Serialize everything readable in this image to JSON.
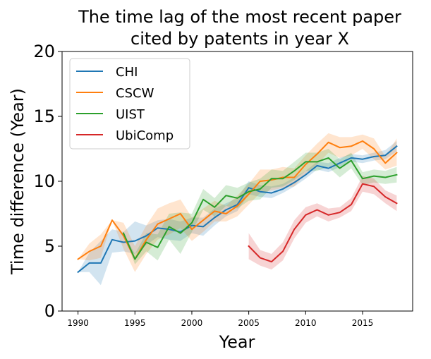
{
  "chart_data": {
    "type": "line",
    "title": [
      "The time lag of the most recent paper",
      "cited by patents in year X"
    ],
    "xlabel": "Year",
    "ylabel": "Time difference (Year)",
    "xlim": [
      1988.6,
      2019.4
    ],
    "ylim": [
      0,
      20
    ],
    "xticks": [
      1990,
      1995,
      2000,
      2005,
      2010,
      2015
    ],
    "xtick_labels": [
      "1990",
      "1995",
      "2000",
      "2005",
      "2010",
      "2015"
    ],
    "yticks": [
      0,
      5,
      10,
      15,
      20
    ],
    "ytick_labels": [
      "0",
      "5",
      "10",
      "15",
      "20"
    ],
    "grid": false,
    "legend_position": "top-left",
    "series": [
      {
        "name": "CHI",
        "color": "#1f77b4",
        "x": [
          1990,
          1991,
          1992,
          1993,
          1994,
          1995,
          1996,
          1997,
          1998,
          1999,
          2000,
          2001,
          2002,
          2003,
          2004,
          2005,
          2006,
          2007,
          2008,
          2009,
          2010,
          2011,
          2012,
          2013,
          2014,
          2015,
          2016,
          2017,
          2018
        ],
        "values": [
          3.0,
          3.7,
          3.7,
          5.5,
          5.3,
          5.4,
          5.8,
          6.4,
          6.3,
          6.1,
          6.6,
          6.5,
          7.2,
          7.8,
          8.2,
          9.5,
          9.2,
          9.1,
          9.4,
          9.9,
          10.5,
          11.2,
          11.0,
          11.4,
          11.8,
          11.7,
          11.9,
          12.0,
          12.7
        ],
        "ci_low": [
          3.0,
          3.0,
          2.0,
          4.5,
          4.6,
          4.4,
          5.1,
          5.7,
          5.5,
          5.4,
          6.0,
          5.8,
          6.6,
          7.3,
          7.7,
          9.0,
          8.8,
          8.7,
          9.1,
          9.6,
          10.2,
          10.9,
          10.7,
          11.1,
          11.5,
          11.4,
          11.6,
          11.7,
          12.3
        ],
        "ci_high": [
          3.0,
          4.5,
          5.4,
          6.3,
          6.1,
          6.9,
          6.6,
          7.0,
          7.1,
          6.9,
          7.2,
          7.2,
          7.9,
          8.3,
          8.7,
          10.0,
          9.7,
          9.6,
          9.8,
          10.3,
          10.8,
          11.5,
          11.4,
          11.8,
          12.1,
          12.0,
          12.2,
          12.4,
          13.1
        ]
      },
      {
        "name": "CSCW",
        "color": "#ff7f0e",
        "x": [
          1990,
          1991,
          1992,
          1993,
          1994,
          1995,
          1996,
          1997,
          1998,
          1999,
          2000,
          2001,
          2002,
          2003,
          2004,
          2005,
          2006,
          2007,
          2008,
          2009,
          2010,
          2011,
          2012,
          2013,
          2014,
          2015,
          2016,
          2017,
          2018
        ],
        "values": [
          4.0,
          4.6,
          5.0,
          7.0,
          5.8,
          4.0,
          5.5,
          6.7,
          7.1,
          7.5,
          6.3,
          7.0,
          7.7,
          7.5,
          8.1,
          9.0,
          10.0,
          10.1,
          10.3,
          10.3,
          11.3,
          12.1,
          13.0,
          12.6,
          12.7,
          13.1,
          12.5,
          11.4,
          12.2
        ],
        "ci_low": [
          4.0,
          3.9,
          4.1,
          7.0,
          4.8,
          3.0,
          4.4,
          5.5,
          5.9,
          6.4,
          5.4,
          6.1,
          6.9,
          6.9,
          7.3,
          8.2,
          9.1,
          9.3,
          9.5,
          9.6,
          10.6,
          11.3,
          12.2,
          11.8,
          12.0,
          12.5,
          11.7,
          10.9,
          11.2
        ],
        "ci_high": [
          4.0,
          5.2,
          5.9,
          7.0,
          6.8,
          5.0,
          6.6,
          7.9,
          8.3,
          8.6,
          7.2,
          7.9,
          8.5,
          8.1,
          8.9,
          9.8,
          10.9,
          10.9,
          11.1,
          11.0,
          12.0,
          12.9,
          13.7,
          13.4,
          13.4,
          13.6,
          13.3,
          11.9,
          13.3
        ]
      },
      {
        "name": "UIST",
        "color": "#2ca02c",
        "x": [
          1994,
          1995,
          1996,
          1997,
          1998,
          1999,
          2000,
          2001,
          2002,
          2003,
          2004,
          2005,
          2006,
          2007,
          2008,
          2009,
          2010,
          2011,
          2012,
          2013,
          2014,
          2015,
          2016,
          2017,
          2018
        ],
        "values": [
          6.0,
          4.0,
          5.3,
          4.9,
          6.5,
          6.0,
          6.8,
          8.6,
          8.0,
          8.9,
          8.7,
          9.2,
          9.4,
          10.2,
          10.2,
          10.8,
          11.5,
          11.5,
          11.8,
          11.0,
          11.6,
          10.2,
          10.4,
          10.3,
          10.5
        ],
        "ci_low": [
          6.0,
          3.6,
          4.6,
          3.9,
          5.5,
          4.4,
          6.1,
          7.8,
          7.3,
          8.1,
          7.9,
          8.5,
          8.6,
          9.5,
          9.6,
          10.1,
          10.8,
          10.8,
          11.1,
          10.3,
          11.0,
          9.7,
          9.9,
          9.8,
          9.9
        ],
        "ci_high": [
          6.0,
          4.4,
          6.0,
          5.9,
          7.5,
          7.6,
          7.5,
          9.4,
          8.7,
          9.7,
          9.5,
          9.9,
          10.2,
          10.9,
          10.8,
          11.5,
          12.2,
          12.2,
          12.5,
          11.7,
          12.2,
          10.7,
          10.9,
          10.8,
          11.1
        ]
      },
      {
        "name": "UbiComp",
        "color": "#d62728",
        "x": [
          2005,
          2006,
          2007,
          2008,
          2009,
          2010,
          2011,
          2012,
          2013,
          2014,
          2015,
          2016,
          2017,
          2018
        ],
        "values": [
          5.0,
          4.1,
          3.8,
          4.6,
          6.3,
          7.4,
          7.8,
          7.4,
          7.6,
          8.2,
          9.8,
          9.6,
          8.8,
          8.3
        ],
        "ci_low": [
          4.0,
          3.5,
          3.2,
          3.9,
          5.6,
          6.8,
          7.3,
          6.9,
          7.2,
          7.7,
          9.2,
          9.0,
          8.3,
          7.7
        ],
        "ci_high": [
          6.0,
          4.7,
          4.4,
          5.3,
          7.0,
          8.0,
          8.3,
          7.9,
          8.0,
          8.7,
          10.4,
          10.2,
          9.3,
          8.9
        ]
      }
    ]
  }
}
